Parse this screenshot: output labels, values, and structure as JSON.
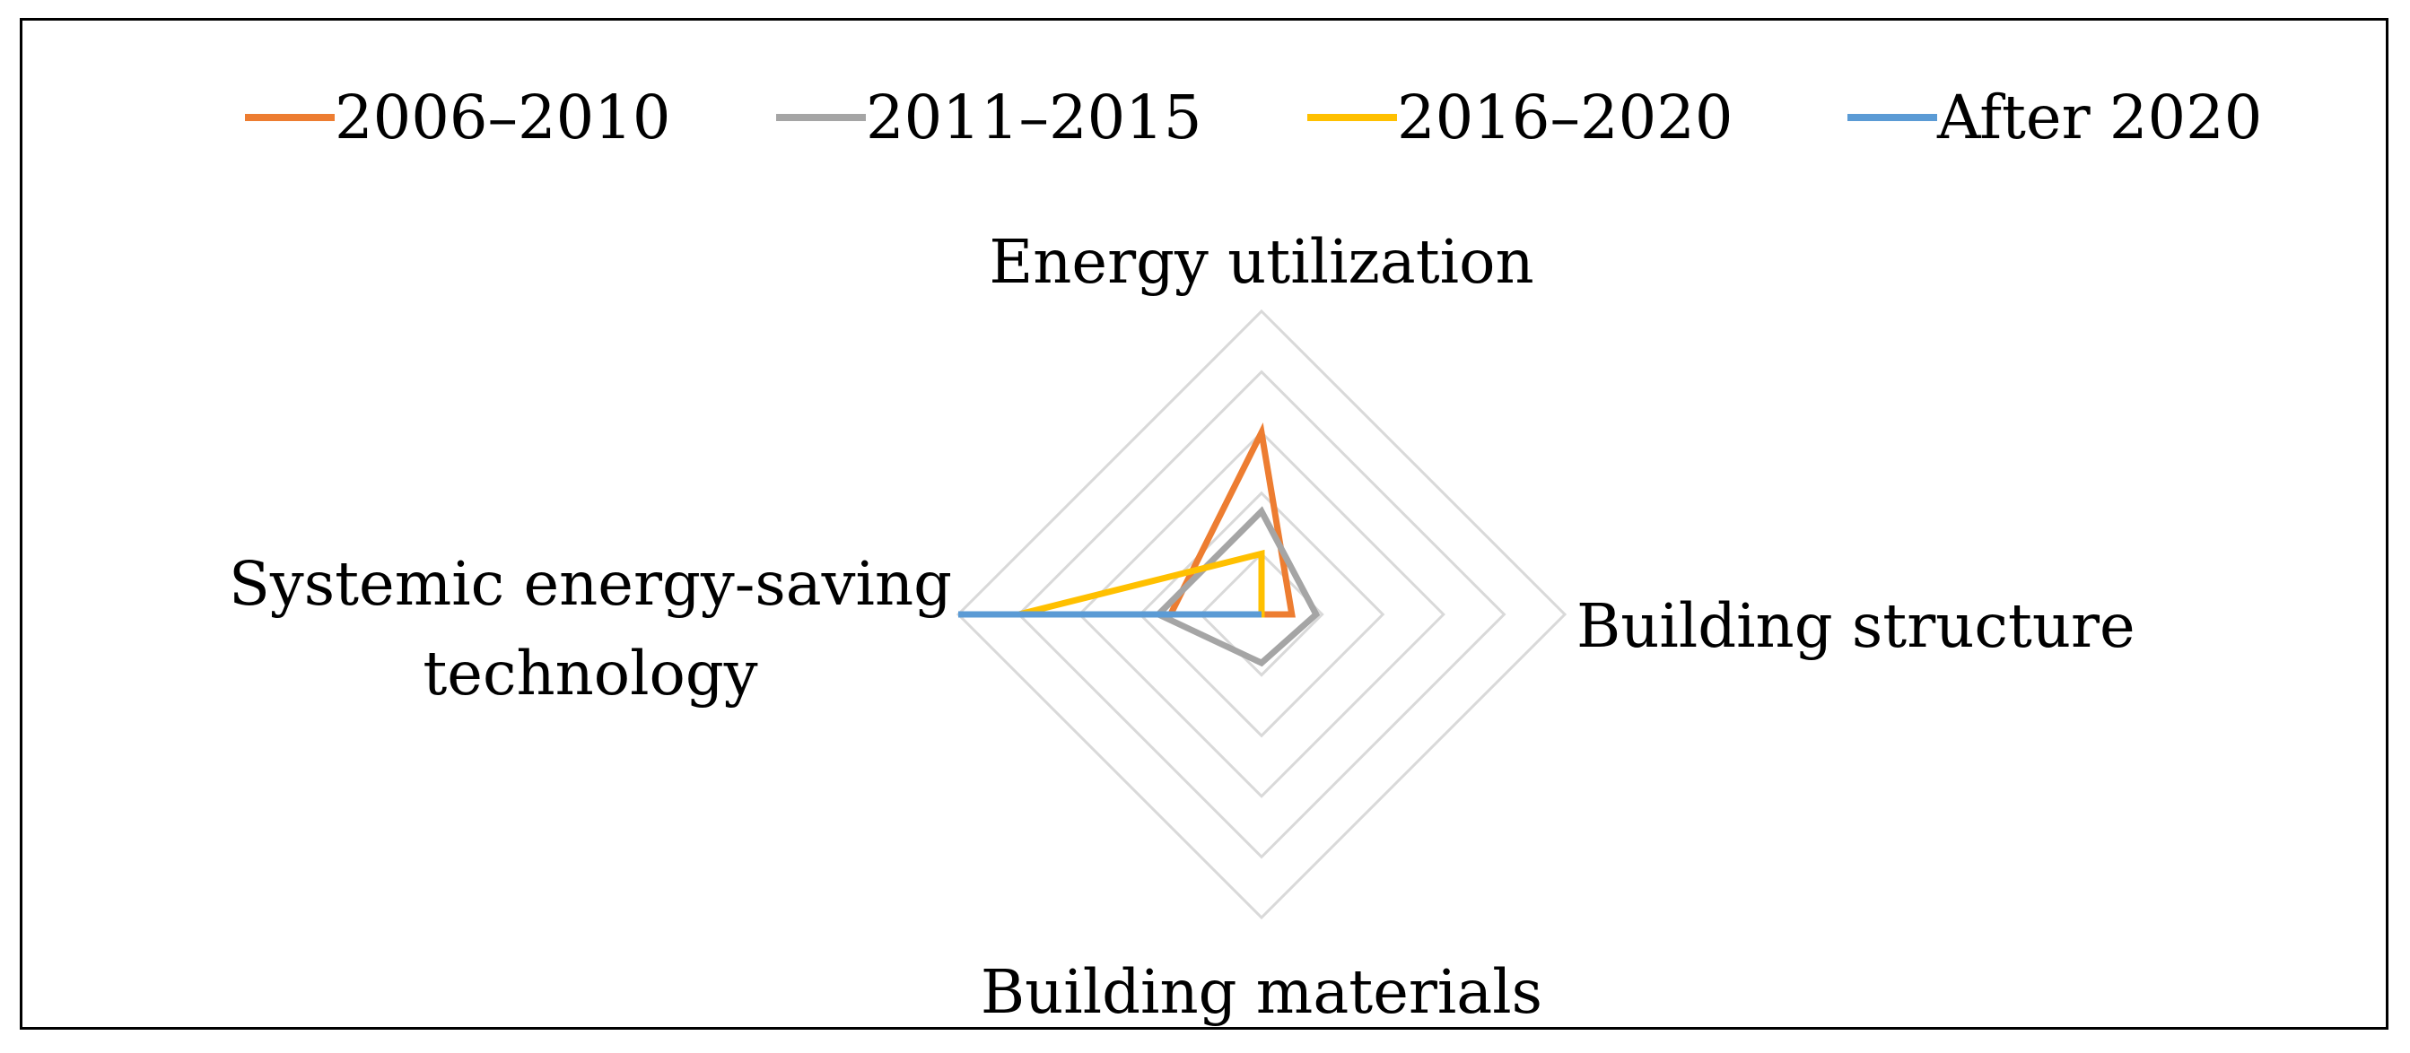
{
  "chart_data": {
    "type": "radar",
    "title": "",
    "axes": [
      "Energy utilization",
      "Building structure",
      "Building materials",
      "Systemic energy-saving technology"
    ],
    "axis_label_lines": [
      [
        "Energy utilization"
      ],
      [
        "Building structure"
      ],
      [
        "Building materials"
      ],
      [
        "Systemic energy-saving",
        "technology"
      ]
    ],
    "rmax": 5,
    "grid_levels": [
      1,
      2,
      3,
      4,
      5
    ],
    "legend_position": "top",
    "series": [
      {
        "name": "2006–2010",
        "color": "#ED7D31",
        "values": [
          3,
          0.5,
          0,
          1.5
        ]
      },
      {
        "name": "2011–2015",
        "color": "#A5A5A5",
        "values": [
          1.7,
          0.9,
          0.8,
          1.7
        ]
      },
      {
        "name": "2016–2020",
        "color": "#FFC000",
        "values": [
          1.0,
          0,
          0,
          4.0
        ]
      },
      {
        "name": "After 2020",
        "color": "#5B9BD5",
        "values": [
          0,
          0,
          0,
          5.0
        ]
      }
    ],
    "gridline_color": "#D9D9D9"
  }
}
